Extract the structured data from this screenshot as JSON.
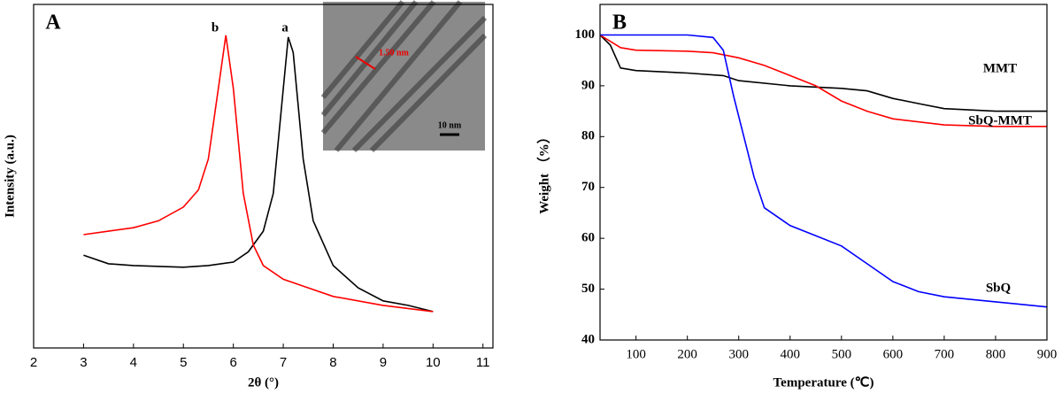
{
  "chart_data": [
    {
      "type": "line",
      "label": "A",
      "xlabel": "2θ (°)",
      "ylabel": "Intensity (a.u.)",
      "xlim": [
        2,
        11.2
      ],
      "xticks": [
        2,
        3,
        4,
        5,
        6,
        7,
        8,
        9,
        10,
        11
      ],
      "ylim": [
        0,
        100
      ],
      "inset_annotations": [
        "1.50 nm",
        "10 nm"
      ],
      "series": [
        {
          "name": "a",
          "color": "#000000",
          "x": [
            3,
            3.5,
            4,
            5,
            5.5,
            6,
            6.3,
            6.6,
            6.8,
            7.0,
            7.1,
            7.2,
            7.4,
            7.6,
            8,
            8.5,
            9,
            9.5,
            10
          ],
          "values": [
            27,
            24.5,
            24,
            23.5,
            24,
            25,
            28,
            34,
            45,
            75.5,
            90.5,
            86,
            55,
            37,
            24,
            17.5,
            13.7,
            12.4,
            10.6
          ]
        },
        {
          "name": "b",
          "color": "#ff0000",
          "x": [
            3,
            3.5,
            4,
            4.5,
            5,
            5.3,
            5.5,
            5.7,
            5.85,
            6.0,
            6.2,
            6.4,
            6.6,
            7,
            7.5,
            8,
            9,
            10
          ],
          "values": [
            33,
            34,
            35,
            37,
            41,
            46,
            55,
            75.5,
            91,
            75.5,
            45,
            30,
            24,
            20,
            17.5,
            15,
            12.4,
            10.6
          ]
        }
      ]
    },
    {
      "type": "line",
      "label": "B",
      "xlabel": "Temperature (℃)",
      "ylabel": "Weight （%）",
      "xlim": [
        30,
        900
      ],
      "xticks": [
        100,
        200,
        300,
        400,
        500,
        600,
        700,
        800,
        900
      ],
      "ylim": [
        40,
        106
      ],
      "yticks": [
        40,
        50,
        60,
        70,
        80,
        90,
        100
      ],
      "series": [
        {
          "name": "MMT",
          "color": "#000000",
          "x": [
            30,
            50,
            70,
            100,
            200,
            270,
            300,
            400,
            500,
            550,
            600,
            650,
            700,
            800,
            900
          ],
          "values": [
            100,
            98,
            93.5,
            93,
            92.5,
            92,
            91,
            90,
            89.5,
            89,
            87.5,
            86.5,
            85.5,
            85,
            85
          ]
        },
        {
          "name": "SbQ-MMT",
          "color": "#ff0000",
          "x": [
            30,
            70,
            100,
            200,
            250,
            300,
            350,
            400,
            450,
            500,
            550,
            600,
            700,
            800,
            900
          ],
          "values": [
            100,
            97.5,
            97,
            96.8,
            96.5,
            95.5,
            94,
            92,
            90,
            87,
            85,
            83.5,
            82.3,
            82,
            82
          ]
        },
        {
          "name": "SbQ",
          "color": "#0000ff",
          "x": [
            30,
            100,
            200,
            250,
            270,
            290,
            310,
            330,
            350,
            400,
            450,
            500,
            550,
            600,
            650,
            700,
            800,
            900
          ],
          "values": [
            100,
            100,
            100,
            99.5,
            97,
            88,
            80,
            72,
            66,
            62.5,
            60.5,
            58.5,
            55,
            51.5,
            49.5,
            48.5,
            47.5,
            46.5
          ]
        }
      ]
    }
  ]
}
